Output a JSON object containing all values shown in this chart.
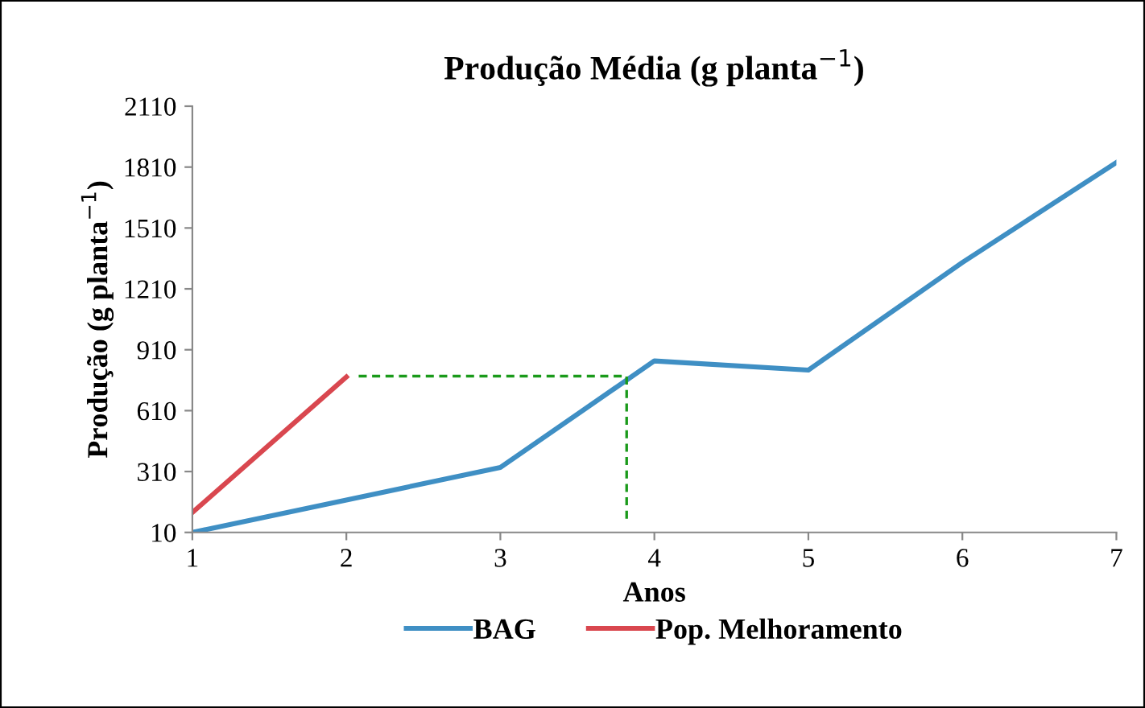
{
  "chart_data": {
    "type": "line",
    "title": "Produção Média (g planta$^{−1}$)",
    "xlabel": "Anos",
    "ylabel": "Produção (g planta$^{−1}$)",
    "x": [
      1,
      2,
      3,
      4,
      5,
      6,
      7
    ],
    "series": [
      {
        "name": "BAG",
        "color": "#3f8fc4",
        "values": [
          10,
          170,
          330,
          855,
          810,
          1340,
          1833
        ]
      },
      {
        "name": "Pop. Melhoramento",
        "color": "#d9474f",
        "x": [
          1,
          2
        ],
        "values": [
          108,
          776
        ]
      },
      {
        "color": "#1a9a1a",
        "x": [
          2.08,
          3.82,
          3.82
        ],
        "values": [
          780,
          780,
          77
        ],
        "line_style": "dashed"
      }
    ],
    "xlim": [
      1,
      7
    ],
    "xticks": [
      1,
      2,
      3,
      4,
      5,
      6,
      7
    ],
    "ylim": [
      10,
      2110
    ],
    "yticks": [
      10,
      310,
      610,
      910,
      1210,
      1510,
      1810,
      2110
    ],
    "grid": false,
    "legend": "bottom",
    "marker": "none",
    "line_style": "solid"
  }
}
